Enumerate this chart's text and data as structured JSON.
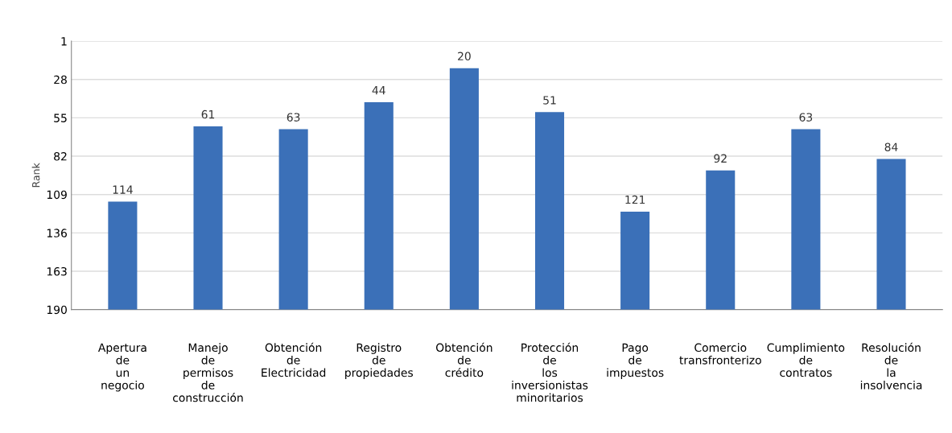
{
  "chart_data": {
    "type": "bar",
    "ylabel": "Rank",
    "categories": [
      "Apertura\nde\nun\nnegocio",
      "Manejo\nde\npermisos\nde\nconstrucción",
      "Obtención\nde\nElectricidad",
      "Registro\nde\npropiedades",
      "Obtención\nde\ncrédito",
      "Protección\nde\nlos\ninversionistas\nminoritarios",
      "Pago\nde\nimpuestos",
      "Comercio\ntransfronterizo",
      "Cumplimiento\nde\ncontratos",
      "Resolución\nde\nla\ninsolvencia"
    ],
    "base": [
      190,
      190,
      190,
      190,
      190,
      190,
      190,
      190,
      190,
      190
    ],
    "values": [
      -76,
      -129,
      -127,
      -146,
      -170,
      -139,
      -69,
      -98,
      -127,
      -106
    ],
    "value_labels": [
      "114",
      "61",
      "63",
      "44",
      "20",
      "51",
      "121",
      "92",
      "63",
      "84"
    ],
    "color": "#3b70b8",
    "ylim": [
      190,
      1
    ],
    "yticks": [
      1,
      28,
      55,
      82,
      109,
      136,
      163,
      190
    ],
    "grid": "y"
  }
}
